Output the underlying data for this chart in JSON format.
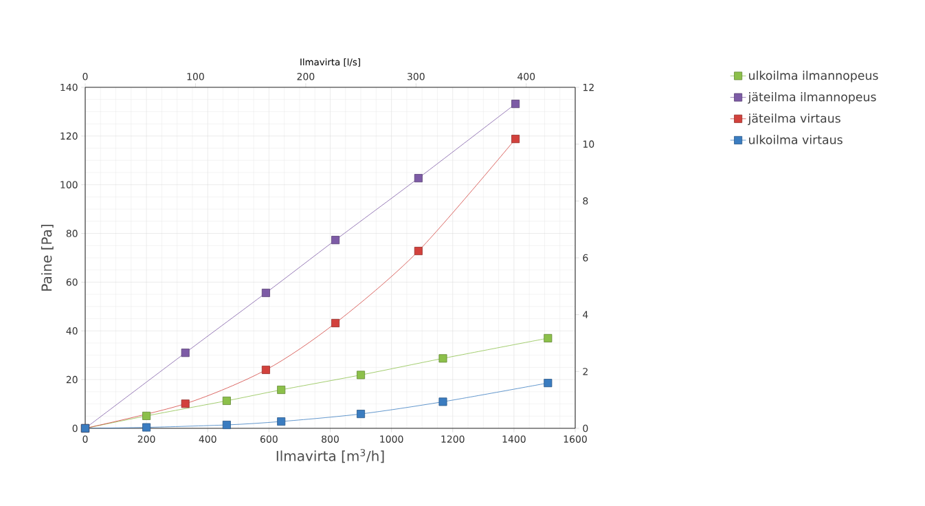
{
  "chart_data": {
    "type": "line",
    "xlabel": "Ilmavirta [m$^{3}$/h]",
    "ylabel": "Paine [Pa]",
    "x2label": "Ilmavirta [l/s]",
    "xlim": [
      0,
      1600
    ],
    "xticks": [
      0,
      200,
      400,
      600,
      800,
      1000,
      1200,
      1400,
      1600
    ],
    "ylim": [
      0,
      140
    ],
    "yticks": [
      0,
      20,
      40,
      60,
      80,
      100,
      120,
      140
    ],
    "x2lim": [
      0,
      444.4
    ],
    "x2ticks": [
      0,
      100,
      200,
      300,
      400
    ],
    "y2lim": [
      0,
      12
    ],
    "y2ticks": [
      0,
      2,
      4,
      6,
      8,
      10,
      12
    ],
    "grid": true,
    "legend": "right",
    "marker": "square",
    "line_style": "solid",
    "series": [
      {
        "name": "ulkoilma ilmannopeus",
        "color": "#8cc04a",
        "x": [
          0,
          200,
          462,
          640,
          900,
          1168,
          1511
        ],
        "values": [
          0,
          5.1,
          11.3,
          15.8,
          21.9,
          28.7,
          37.0
        ]
      },
      {
        "name": "jäteilma ilmannopeus",
        "color": "#7d5ba6",
        "x": [
          0,
          327,
          590,
          817,
          1088,
          1405
        ],
        "values": [
          0,
          31.0,
          55.6,
          77.3,
          102.7,
          133.2
        ]
      },
      {
        "name": "jäteilma virtaus",
        "color": "#d2413c",
        "x": [
          0,
          327,
          590,
          817,
          1088,
          1405
        ],
        "values": [
          0,
          10.1,
          24.0,
          43.2,
          72.8,
          118.8
        ]
      },
      {
        "name": "ulkoilma virtaus",
        "color": "#3a7cc0",
        "x": [
          0,
          200,
          462,
          640,
          900,
          1168,
          1511
        ],
        "values": [
          0,
          0.4,
          1.4,
          2.8,
          5.9,
          10.9,
          18.6
        ]
      }
    ]
  }
}
